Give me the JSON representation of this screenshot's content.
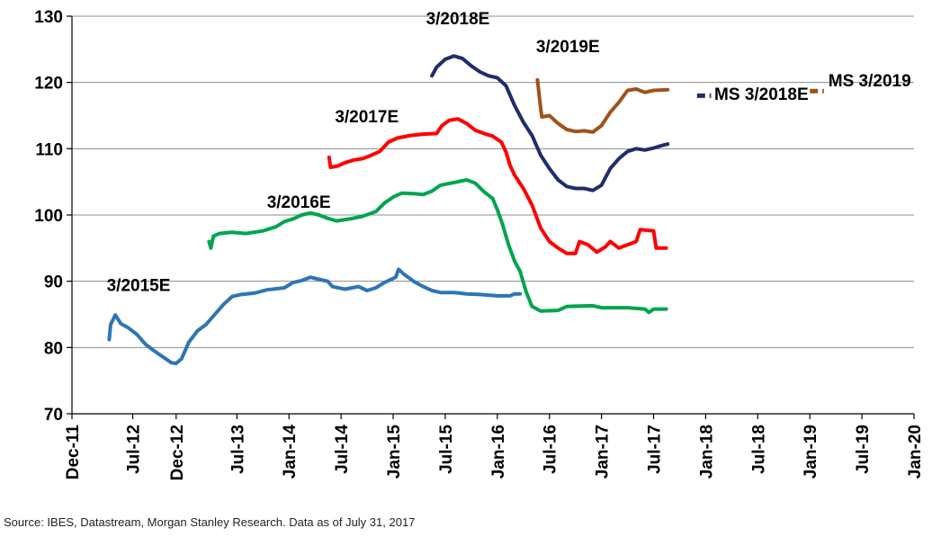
{
  "chart_data": {
    "type": "line",
    "title": "",
    "xlabel": "",
    "ylabel": "",
    "ylim": [
      70,
      130
    ],
    "yticks": [
      70,
      80,
      90,
      100,
      110,
      120,
      130
    ],
    "xlim": [
      "2011-12",
      "2020-01"
    ],
    "xticks": [
      "Dec-11",
      "Jul-12",
      "Dec-12",
      "Jul-13",
      "Jan-14",
      "Jul-14",
      "Jan-15",
      "Jul-15",
      "Jan-16",
      "Jul-16",
      "Jan-17",
      "Jul-17",
      "Jan-18",
      "Jul-18",
      "Jan-19",
      "Jul-19",
      "Jan-20"
    ],
    "grid": "horizontal",
    "colors": {
      "fy2015": "#2E75B6",
      "fy2016": "#00A550",
      "fy2017": "#FF0000",
      "fy2018": "#1F2D6E",
      "fy2019": "#A0521A"
    },
    "series": [
      {
        "name": "3/2015E",
        "color_key": "fy2015",
        "points": [
          [
            "2012-04-10",
            81.2
          ],
          [
            "2012-04-15",
            83.5
          ],
          [
            "2012-05-01",
            84.9
          ],
          [
            "2012-05-20",
            83.6
          ],
          [
            "2012-06-15",
            83.0
          ],
          [
            "2012-07-15",
            82.0
          ],
          [
            "2012-08-15",
            80.5
          ],
          [
            "2012-09-15",
            79.5
          ],
          [
            "2012-10-15",
            78.6
          ],
          [
            "2012-11-15",
            77.7
          ],
          [
            "2012-12-01",
            77.6
          ],
          [
            "2012-12-20",
            78.3
          ],
          [
            "2013-01-15",
            80.8
          ],
          [
            "2013-02-15",
            82.5
          ],
          [
            "2013-03-15",
            83.5
          ],
          [
            "2013-04-15",
            85.0
          ],
          [
            "2013-05-15",
            86.5
          ],
          [
            "2013-06-15",
            87.7
          ],
          [
            "2013-07-15",
            88.0
          ],
          [
            "2013-09-01",
            88.2
          ],
          [
            "2013-10-15",
            88.7
          ],
          [
            "2013-12-15",
            89.0
          ],
          [
            "2014-01-15",
            89.8
          ],
          [
            "2014-02-15",
            90.1
          ],
          [
            "2014-03-15",
            90.6
          ],
          [
            "2014-04-15",
            90.3
          ],
          [
            "2014-05-15",
            90.0
          ],
          [
            "2014-06-01",
            89.2
          ],
          [
            "2014-07-15",
            88.8
          ],
          [
            "2014-09-01",
            89.2
          ],
          [
            "2014-10-01",
            88.6
          ],
          [
            "2014-11-01",
            89.0
          ],
          [
            "2014-12-01",
            89.8
          ],
          [
            "2015-01-10",
            90.6
          ],
          [
            "2015-01-20",
            91.8
          ],
          [
            "2015-02-10",
            91.0
          ],
          [
            "2015-03-15",
            89.9
          ],
          [
            "2015-04-15",
            89.2
          ],
          [
            "2015-05-15",
            88.6
          ],
          [
            "2015-06-15",
            88.3
          ],
          [
            "2015-08-01",
            88.3
          ],
          [
            "2015-09-15",
            88.1
          ],
          [
            "2015-11-01",
            88.0
          ],
          [
            "2016-01-01",
            87.8
          ],
          [
            "2016-02-15",
            87.8
          ],
          [
            "2016-03-01",
            88.1
          ],
          [
            "2016-03-20",
            88.1
          ]
        ]
      },
      {
        "name": "3/2016E",
        "color_key": "fy2016",
        "points": [
          [
            "2013-03-25",
            96.0
          ],
          [
            "2013-04-01",
            95.0
          ],
          [
            "2013-04-10",
            96.8
          ],
          [
            "2013-05-01",
            97.2
          ],
          [
            "2013-06-15",
            97.4
          ],
          [
            "2013-08-01",
            97.2
          ],
          [
            "2013-10-01",
            97.6
          ],
          [
            "2013-11-15",
            98.2
          ],
          [
            "2013-12-15",
            99.0
          ],
          [
            "2014-01-15",
            99.4
          ],
          [
            "2014-02-15",
            100.0
          ],
          [
            "2014-03-15",
            100.3
          ],
          [
            "2014-04-15",
            100.0
          ],
          [
            "2014-05-15",
            99.5
          ],
          [
            "2014-06-15",
            99.1
          ],
          [
            "2014-08-01",
            99.4
          ],
          [
            "2014-09-15",
            99.8
          ],
          [
            "2014-11-01",
            100.5
          ],
          [
            "2014-12-01",
            101.8
          ],
          [
            "2015-01-01",
            102.7
          ],
          [
            "2015-02-01",
            103.3
          ],
          [
            "2015-03-15",
            103.2
          ],
          [
            "2015-04-15",
            103.1
          ],
          [
            "2015-05-15",
            103.6
          ],
          [
            "2015-06-15",
            104.5
          ],
          [
            "2015-08-01",
            104.9
          ],
          [
            "2015-09-15",
            105.3
          ],
          [
            "2015-10-15",
            104.8
          ],
          [
            "2015-11-15",
            103.5
          ],
          [
            "2015-12-15",
            102.5
          ],
          [
            "2016-01-01",
            100.8
          ],
          [
            "2016-01-20",
            98.5
          ],
          [
            "2016-02-10",
            95.5
          ],
          [
            "2016-03-01",
            93.0
          ],
          [
            "2016-03-20",
            91.5
          ],
          [
            "2016-04-10",
            88.5
          ],
          [
            "2016-05-01",
            86.2
          ],
          [
            "2016-06-01",
            85.5
          ],
          [
            "2016-08-01",
            85.6
          ],
          [
            "2016-09-01",
            86.2
          ],
          [
            "2016-12-01",
            86.3
          ],
          [
            "2017-01-01",
            86.0
          ],
          [
            "2017-04-01",
            86.0
          ],
          [
            "2017-06-01",
            85.8
          ],
          [
            "2017-06-15",
            85.3
          ],
          [
            "2017-07-01",
            85.8
          ],
          [
            "2017-08-15",
            85.8
          ]
        ]
      },
      {
        "name": "3/2017E",
        "color_key": "fy2017",
        "points": [
          [
            "2014-05-20",
            108.7
          ],
          [
            "2014-05-25",
            107.2
          ],
          [
            "2014-06-20",
            107.4
          ],
          [
            "2014-07-15",
            107.9
          ],
          [
            "2014-08-15",
            108.3
          ],
          [
            "2014-09-15",
            108.5
          ],
          [
            "2014-10-15",
            109.0
          ],
          [
            "2014-11-15",
            109.6
          ],
          [
            "2014-12-15",
            111.0
          ],
          [
            "2015-01-15",
            111.6
          ],
          [
            "2015-03-01",
            112.0
          ],
          [
            "2015-04-15",
            112.2
          ],
          [
            "2015-06-01",
            112.3
          ],
          [
            "2015-06-20",
            113.5
          ],
          [
            "2015-07-15",
            114.3
          ],
          [
            "2015-08-15",
            114.5
          ],
          [
            "2015-09-15",
            113.8
          ],
          [
            "2015-10-15",
            112.8
          ],
          [
            "2015-11-15",
            112.3
          ],
          [
            "2015-12-15",
            111.9
          ],
          [
            "2016-01-15",
            111.0
          ],
          [
            "2016-02-01",
            109.5
          ],
          [
            "2016-02-15",
            107.5
          ],
          [
            "2016-03-01",
            106.0
          ],
          [
            "2016-04-01",
            104.0
          ],
          [
            "2016-05-01",
            101.5
          ],
          [
            "2016-06-01",
            98.0
          ],
          [
            "2016-07-01",
            96.0
          ],
          [
            "2016-08-01",
            95.0
          ],
          [
            "2016-09-01",
            94.2
          ],
          [
            "2016-10-01",
            94.2
          ],
          [
            "2016-10-15",
            96.0
          ],
          [
            "2016-11-15",
            95.5
          ],
          [
            "2016-12-15",
            94.4
          ],
          [
            "2017-01-15",
            95.2
          ],
          [
            "2017-02-01",
            96.0
          ],
          [
            "2017-03-01",
            95.0
          ],
          [
            "2017-04-01",
            95.5
          ],
          [
            "2017-05-01",
            96.0
          ],
          [
            "2017-05-15",
            97.8
          ],
          [
            "2017-07-01",
            97.6
          ],
          [
            "2017-07-10",
            95.0
          ],
          [
            "2017-08-15",
            95.0
          ]
        ]
      },
      {
        "name": "3/2018E",
        "color_key": "fy2018",
        "points": [
          [
            "2015-05-15",
            121.0
          ],
          [
            "2015-06-01",
            122.3
          ],
          [
            "2015-07-01",
            123.5
          ],
          [
            "2015-08-01",
            124.0
          ],
          [
            "2015-09-01",
            123.6
          ],
          [
            "2015-10-01",
            122.5
          ],
          [
            "2015-11-01",
            121.6
          ],
          [
            "2015-12-01",
            121.0
          ],
          [
            "2016-01-01",
            120.7
          ],
          [
            "2016-02-01",
            119.5
          ],
          [
            "2016-03-01",
            116.5
          ],
          [
            "2016-04-01",
            114.0
          ],
          [
            "2016-05-01",
            112.0
          ],
          [
            "2016-06-01",
            109.0
          ],
          [
            "2016-07-01",
            107.0
          ],
          [
            "2016-08-01",
            105.3
          ],
          [
            "2016-09-01",
            104.3
          ],
          [
            "2016-10-01",
            104.0
          ],
          [
            "2016-11-01",
            104.0
          ],
          [
            "2016-12-01",
            103.7
          ],
          [
            "2017-01-01",
            104.5
          ],
          [
            "2017-02-01",
            107.0
          ],
          [
            "2017-03-01",
            108.5
          ],
          [
            "2017-04-01",
            109.6
          ],
          [
            "2017-05-01",
            110.0
          ],
          [
            "2017-06-01",
            109.8
          ],
          [
            "2017-07-01",
            110.1
          ],
          [
            "2017-08-01",
            110.5
          ],
          [
            "2017-08-20",
            110.7
          ]
        ]
      },
      {
        "name": "3/2019E",
        "color_key": "fy2019",
        "points": [
          [
            "2016-05-20",
            120.4
          ],
          [
            "2016-06-01",
            116.0
          ],
          [
            "2016-06-05",
            114.8
          ],
          [
            "2016-07-01",
            115.0
          ],
          [
            "2016-08-01",
            113.8
          ],
          [
            "2016-09-01",
            112.9
          ],
          [
            "2016-10-01",
            112.6
          ],
          [
            "2016-11-01",
            112.7
          ],
          [
            "2016-12-01",
            112.5
          ],
          [
            "2017-01-01",
            113.5
          ],
          [
            "2017-02-01",
            115.5
          ],
          [
            "2017-03-01",
            117.0
          ],
          [
            "2017-04-01",
            118.8
          ],
          [
            "2017-05-01",
            119.0
          ],
          [
            "2017-06-01",
            118.5
          ],
          [
            "2017-07-01",
            118.8
          ],
          [
            "2017-08-20",
            118.9
          ]
        ]
      },
      {
        "name": "MS 3/2018E",
        "color_key": "fy2018",
        "dashed": true,
        "points": [
          [
            "2017-12-01",
            118.0
          ],
          [
            "2018-01-20",
            118.0
          ]
        ]
      },
      {
        "name": "MS 3/2019",
        "color_key": "fy2019",
        "dashed": true,
        "points": [
          [
            "2019-01-01",
            118.7
          ],
          [
            "2019-02-20",
            118.7
          ]
        ]
      }
    ],
    "annotations": [
      {
        "text": "3/2015E",
        "at": [
          "2012-04-01",
          88.5
        ]
      },
      {
        "text": "3/2016E",
        "at": [
          "2013-10-15",
          101.1
        ]
      },
      {
        "text": "3/2017E",
        "at": [
          "2014-06-10",
          114.0
        ]
      },
      {
        "text": "3/2018E",
        "at": [
          "2015-04-25",
          128.8
        ]
      },
      {
        "text": "3/2019E",
        "at": [
          "2016-05-15",
          124.6
        ]
      },
      {
        "text": "MS 3/2018E",
        "at": [
          "2018-02-01",
          117.4
        ]
      },
      {
        "text": "MS 3/2019",
        "at": [
          "2019-03-05",
          119.4
        ]
      }
    ]
  },
  "source_note": "Source: IBES, Datastream, Morgan Stanley Research. Data as of July 31, 2017"
}
